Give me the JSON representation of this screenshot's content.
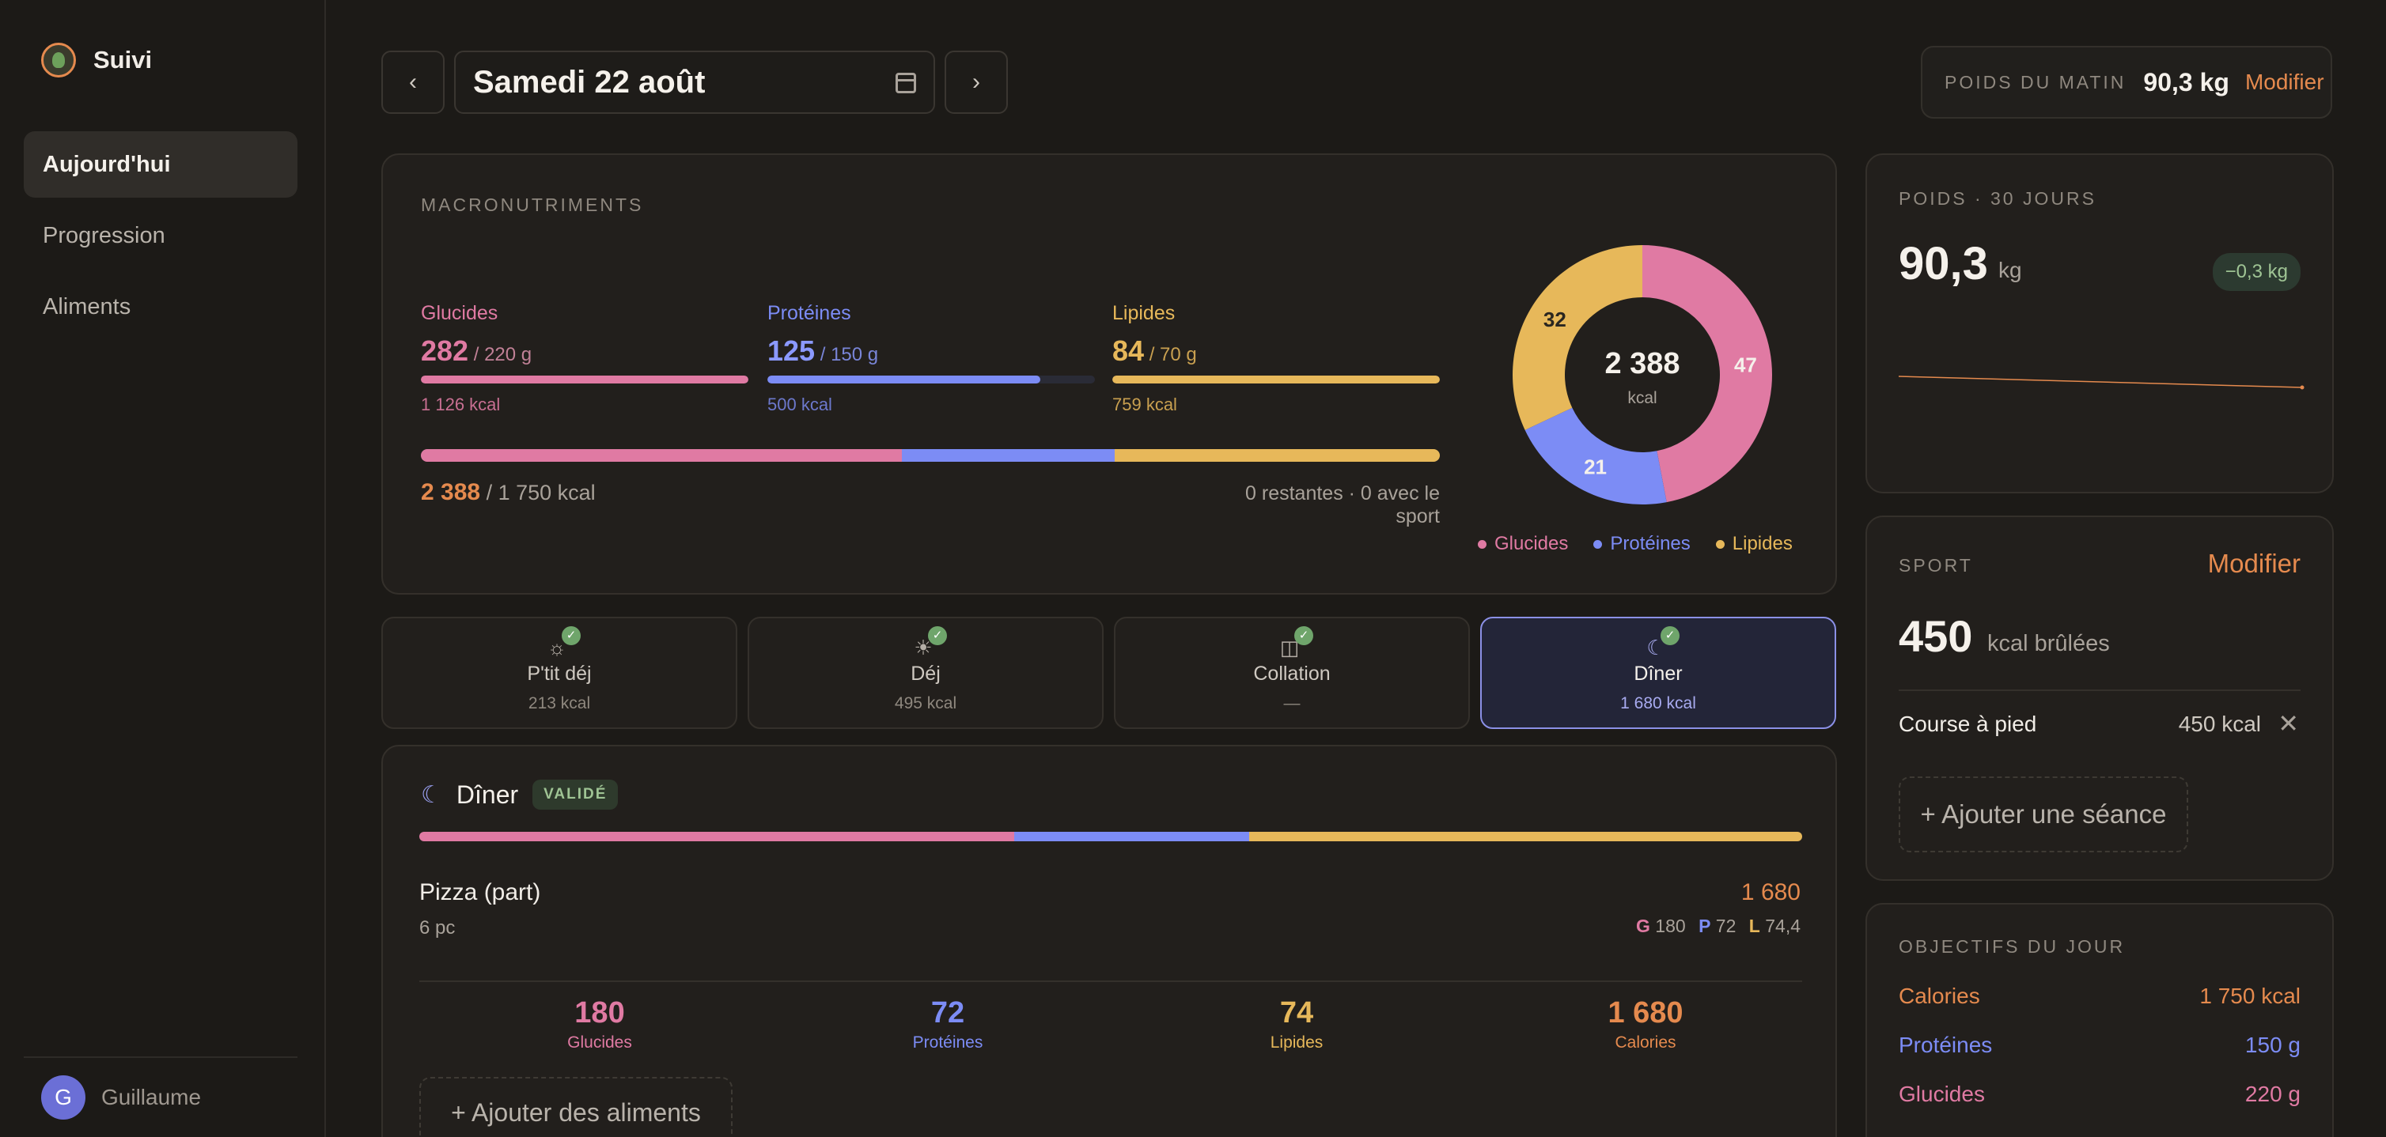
{
  "colors": {
    "accent": "#e58a4e",
    "glucides": "#e07aa3",
    "proteines": "#7c8cf5",
    "lipides": "#e7b85a",
    "success": "#9fc494"
  },
  "sidebar": {
    "brand": "Suivi",
    "brand_icon": "sprout-logo-icon",
    "items": [
      {
        "label": "Aujourd'hui",
        "active": true
      },
      {
        "label": "Progression",
        "active": false
      },
      {
        "label": "Aliments",
        "active": false
      }
    ],
    "user": {
      "initial": "G",
      "name": "Guillaume"
    }
  },
  "topbar": {
    "prev_icon": "chevron-left-icon",
    "prev": "‹",
    "date": "Samedi 22 août",
    "calendar_icon": "calendar-icon",
    "next_icon": "chevron-right-icon",
    "next": "›",
    "morning_weight": {
      "label": "POIDS DU MATIN",
      "value": "90,3 kg",
      "link": "Modifier"
    }
  },
  "macros": {
    "label": "MACRONUTRIMENTS",
    "items": [
      {
        "name": "Glucides",
        "value": "282",
        "target": "/ 220 g",
        "kcal": "1 126 kcal",
        "fill": 1.0
      },
      {
        "name": "Protéines",
        "value": "125",
        "target": "/ 150 g",
        "kcal": "500 kcal",
        "fill": 0.833
      },
      {
        "name": "Lipides",
        "value": "84",
        "target": "/ 70 g",
        "kcal": "759 kcal",
        "fill": 1.0
      }
    ],
    "total_split": [
      0.472,
      0.209,
      0.319
    ],
    "total_value": "2 388",
    "total_target": "/ 1 750 kcal",
    "remaining": "0 restantes · 0 avec le sport",
    "donut": {
      "center_value": "2 388",
      "center_unit": "kcal",
      "labels": [
        "47",
        "21",
        "32"
      ],
      "shares": [
        0.47,
        0.21,
        0.32
      ]
    },
    "legend": [
      "Glucides",
      "Protéines",
      "Lipides"
    ]
  },
  "meals": [
    {
      "name": "P'tit déj",
      "kcal": "213 kcal",
      "icon": "sunrise-icon",
      "done": true,
      "active": false
    },
    {
      "name": "Déj",
      "kcal": "495 kcal",
      "icon": "sun-icon",
      "done": true,
      "active": false
    },
    {
      "name": "Collation",
      "kcal": "—",
      "icon": "snack-icon",
      "done": true,
      "active": false
    },
    {
      "name": "Dîner",
      "kcal": "1 680 kcal",
      "icon": "moon-icon",
      "done": true,
      "active": true
    }
  ],
  "dinner": {
    "title": "Dîner",
    "badge": "VALIDÉ",
    "split": [
      0.43,
      0.17,
      0.4
    ],
    "food": {
      "name": "Pizza (part)",
      "qty": "6 pc",
      "kcal": "1 680",
      "g": "180",
      "p": "72",
      "l": "74,4",
      "g_letter": "G",
      "p_letter": "P",
      "l_letter": "L"
    },
    "totals": [
      {
        "value": "180",
        "label": "Glucides"
      },
      {
        "value": "72",
        "label": "Protéines"
      },
      {
        "value": "74",
        "label": "Lipides"
      },
      {
        "value": "1 680",
        "label": "Calories"
      }
    ],
    "add": "+ Ajouter des aliments"
  },
  "weight30": {
    "label": "POIDS · 30 JOURS",
    "value": "90,3",
    "unit": "kg",
    "delta": "−0,3 kg"
  },
  "sport": {
    "label": "SPORT",
    "link": "Modifier",
    "value": "450",
    "unit": "kcal brûlées",
    "item": {
      "name": "Course à pied",
      "kcal": "450 kcal",
      "remove": "✕"
    },
    "add": "+ Ajouter une séance"
  },
  "objectives": {
    "label": "OBJECTIFS DU JOUR",
    "rows": [
      {
        "name": "Calories",
        "value": "1 750 kcal",
        "color": "#e58a4e"
      },
      {
        "name": "Protéines",
        "value": "150 g",
        "color": "#7c8cf5"
      },
      {
        "name": "Glucides",
        "value": "220 g",
        "color": "#e07aa3"
      }
    ]
  }
}
